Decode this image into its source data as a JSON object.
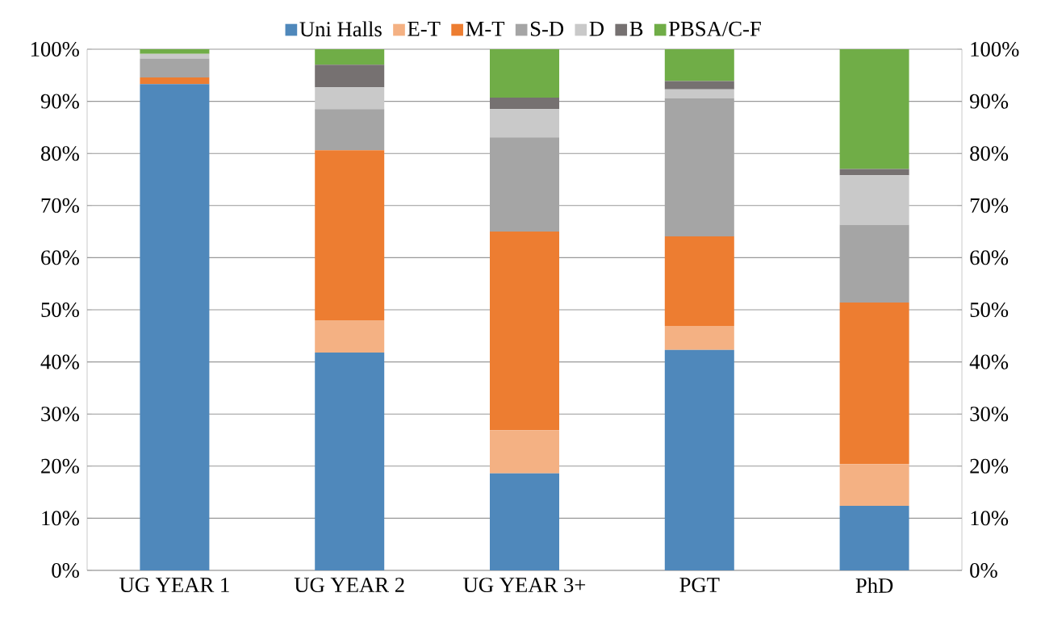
{
  "chart_data": {
    "type": "bar",
    "stacked": true,
    "categories": [
      "UG YEAR 1",
      "UG YEAR 2",
      "UG YEAR 3+",
      "PGT",
      "PhD"
    ],
    "series": [
      {
        "name": "Uni Halls",
        "color": "#4f88bb",
        "values": [
          93.3,
          41.8,
          18.6,
          42.3,
          12.4
        ]
      },
      {
        "name": "E-T",
        "color": "#f4b183",
        "values": [
          0,
          6.2,
          8.3,
          4.6,
          8.0
        ]
      },
      {
        "name": "M-T",
        "color": "#ed7d31",
        "values": [
          1.3,
          32.6,
          38.1,
          17.2,
          31.0
        ]
      },
      {
        "name": "S-D",
        "color": "#a5a5a5",
        "values": [
          3.6,
          7.9,
          18.1,
          26.5,
          14.9
        ]
      },
      {
        "name": "D",
        "color": "#c9c9c9",
        "values": [
          0.9,
          4.2,
          5.4,
          1.7,
          9.5
        ]
      },
      {
        "name": "B",
        "color": "#767171",
        "values": [
          0,
          4.3,
          2.2,
          1.6,
          1.2
        ]
      },
      {
        "name": "PBSA/C-F",
        "color": "#70ad47",
        "values": [
          0.9,
          3.0,
          9.3,
          6.1,
          23.0
        ]
      }
    ],
    "ylim": [
      0,
      100
    ],
    "yticks": [
      {
        "value": 0,
        "label": "0%"
      },
      {
        "value": 10,
        "label": "10%"
      },
      {
        "value": 20,
        "label": "20%"
      },
      {
        "value": 30,
        "label": "30%"
      },
      {
        "value": 40,
        "label": "40%"
      },
      {
        "value": 50,
        "label": "50%"
      },
      {
        "value": 60,
        "label": "60%"
      },
      {
        "value": 70,
        "label": "70%"
      },
      {
        "value": 80,
        "label": "80%"
      },
      {
        "value": 90,
        "label": "90%"
      },
      {
        "value": 100,
        "label": "100%"
      }
    ],
    "y2lim": [
      0,
      100
    ],
    "y2ticks": [
      {
        "value": 0,
        "label": "0%"
      },
      {
        "value": 10,
        "label": "10%"
      },
      {
        "value": 20,
        "label": "20%"
      },
      {
        "value": 30,
        "label": "30%"
      },
      {
        "value": 40,
        "label": "40%"
      },
      {
        "value": 50,
        "label": "50%"
      },
      {
        "value": 60,
        "label": "60%"
      },
      {
        "value": 70,
        "label": "70%"
      },
      {
        "value": 80,
        "label": "80%"
      },
      {
        "value": 90,
        "label": "90%"
      },
      {
        "value": 100,
        "label": "100%"
      }
    ],
    "grid": "y",
    "legend": "top"
  }
}
